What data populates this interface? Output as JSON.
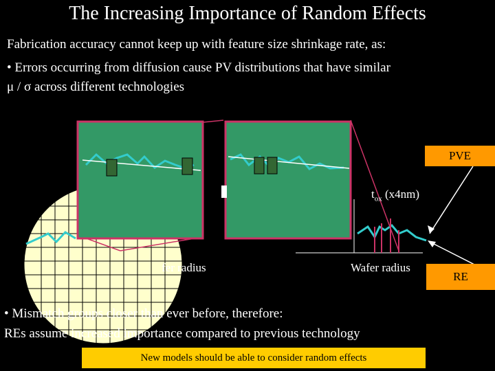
{
  "slide": {
    "title": "The Increasing Importance of Random Effects",
    "intro_line": "Fabrication accuracy cannot keep up with feature size shrinkage rate, as:",
    "bullet1_line1": "• Errors occurring from diffusion cause PV distributions that have similar",
    "bullet1_line2": "μ / σ  across different technologies",
    "pve_label": "PVE",
    "re_label": "RE",
    "tox_label": "t",
    "tox_subscript": "ox",
    "tox_unit": "(x4nm)",
    "wafer_radius_left": "fer radius",
    "wafer_radius_right": "Wafer radius",
    "bullet2_line1": "• Mismatch groups closer than ever before, therefore:",
    "bullet2_line2": "REs assume increased importance compared to previous technology",
    "footer_note": "New models should be able to consider random effects"
  },
  "colors": {
    "background": "#000000",
    "text": "#ffffff",
    "panel_fill": "#339966",
    "panel_border": "#cc3366",
    "wave": "#33cccc",
    "wafer_fill": "#ffffcc",
    "pve_box": "#ff9900",
    "footer_box": "#ffcc00",
    "chip_block": "#336633"
  }
}
